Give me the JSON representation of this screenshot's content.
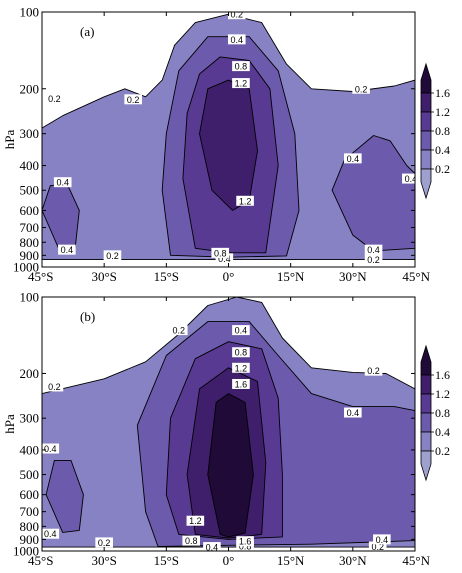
{
  "chart_data": [
    {
      "type": "contour",
      "panel_label": "(a)",
      "title": "",
      "xlabel": "",
      "ylabel": "hPa",
      "x_ticks": [
        "45°S",
        "30°S",
        "15°S",
        "0°",
        "15°N",
        "30°N",
        "45°N"
      ],
      "x_tick_values": [
        -45,
        -30,
        -15,
        0,
        15,
        30,
        45
      ],
      "xlim": [
        -45,
        45
      ],
      "y_ticks": [
        "100",
        "200",
        "300",
        "400",
        "500",
        "600",
        "700",
        "800",
        "900",
        "1000"
      ],
      "y_tick_values": [
        100,
        200,
        300,
        400,
        500,
        600,
        700,
        800,
        900,
        1000
      ],
      "ylim": [
        100,
        1000
      ],
      "y_scale": "log",
      "y_inverted": true,
      "levels": [
        0.2,
        0.4,
        0.8,
        1.2,
        1.6
      ],
      "regions": [
        {
          "level": 0.2,
          "lat_lon": [
            [
              -45,
              285
            ],
            [
              -40,
              255
            ],
            [
              -30,
              215
            ],
            [
              -25,
              200
            ],
            [
              -20,
              215
            ],
            [
              -16,
              185
            ],
            [
              -13,
              135
            ],
            [
              -8,
              110
            ],
            [
              0,
              102
            ],
            [
              8,
              110
            ],
            [
              14,
              160
            ],
            [
              20,
              200
            ],
            [
              30,
              205
            ],
            [
              40,
              195
            ],
            [
              45,
              185
            ],
            [
              45,
              935
            ],
            [
              -45,
              935
            ]
          ]
        },
        {
          "level": 0.4,
          "lat_lon": [
            [
              -14,
              900
            ],
            [
              -16,
              500
            ],
            [
              -15,
              300
            ],
            [
              -12,
              170
            ],
            [
              -5,
              125
            ],
            [
              5,
              125
            ],
            [
              12,
              170
            ],
            [
              16,
              300
            ],
            [
              17,
              600
            ],
            [
              14,
              905
            ],
            [
              0,
              915
            ]
          ]
        },
        {
          "level": 0.4,
          "lat_lon": [
            [
              -41,
              845
            ],
            [
              -45,
              600
            ],
            [
              -43,
              480
            ],
            [
              -39,
              470
            ],
            [
              -36,
              600
            ],
            [
              -37,
              840
            ]
          ]
        },
        {
          "level": 0.4,
          "lat_lon": [
            [
              35,
              305
            ],
            [
              39,
              320
            ],
            [
              43,
              400
            ],
            [
              45,
              430
            ],
            [
              45,
              845
            ],
            [
              35,
              865
            ],
            [
              30,
              750
            ],
            [
              25,
              500
            ],
            [
              28,
              380
            ]
          ]
        },
        {
          "level": 0.8,
          "lat_lon": [
            [
              -8,
              845
            ],
            [
              -11,
              450
            ],
            [
              -10,
              250
            ],
            [
              -7,
              175
            ],
            [
              -2,
              150
            ],
            [
              5,
              155
            ],
            [
              10,
              200
            ],
            [
              12,
              400
            ],
            [
              9,
              880
            ],
            [
              0,
              880
            ]
          ]
        },
        {
          "level": 1.2,
          "lat_lon": [
            [
              -4,
              500
            ],
            [
              -7,
              300
            ],
            [
              -5,
              200
            ],
            [
              0,
              185
            ],
            [
              5,
              200
            ],
            [
              7,
              350
            ],
            [
              5,
              550
            ],
            [
              1,
              600
            ]
          ]
        }
      ],
      "contour_labels": [
        {
          "text": "0.2",
          "lat": 2,
          "p": 102
        },
        {
          "text": "0.2",
          "lat": -42,
          "p": 218
        },
        {
          "text": "0.2",
          "lat": -23,
          "p": 220
        },
        {
          "text": "0.2",
          "lat": 32,
          "p": 200
        },
        {
          "text": "0.2",
          "lat": -28,
          "p": 900
        },
        {
          "text": "0.2",
          "lat": 35,
          "p": 935
        },
        {
          "text": "0.4",
          "lat": 2,
          "p": 128
        },
        {
          "text": "0.4",
          "lat": -40,
          "p": 465
        },
        {
          "text": "0.4",
          "lat": -39,
          "p": 855
        },
        {
          "text": "0.4",
          "lat": 30,
          "p": 375
        },
        {
          "text": "0.4",
          "lat": 44,
          "p": 450
        },
        {
          "text": "0.4",
          "lat": 35,
          "p": 855
        },
        {
          "text": "0.4",
          "lat": -1,
          "p": 925
        },
        {
          "text": "0.8",
          "lat": 3,
          "p": 163
        },
        {
          "text": "0.8",
          "lat": -2,
          "p": 880
        },
        {
          "text": "1.2",
          "lat": 3,
          "p": 190
        },
        {
          "text": "1.2",
          "lat": 4,
          "p": 550
        }
      ]
    },
    {
      "type": "contour",
      "panel_label": "(b)",
      "title": "",
      "xlabel": "",
      "ylabel": "hPa",
      "x_ticks": [
        "45°S",
        "30°S",
        "15°S",
        "0°",
        "15°N",
        "30°N",
        "45°N"
      ],
      "x_tick_values": [
        -45,
        -30,
        -15,
        0,
        15,
        30,
        45
      ],
      "xlim": [
        -45,
        45
      ],
      "y_ticks": [
        "100",
        "200",
        "300",
        "400",
        "500",
        "600",
        "700",
        "800",
        "900",
        "1000"
      ],
      "y_tick_values": [
        100,
        200,
        300,
        400,
        500,
        600,
        700,
        800,
        900,
        1000
      ],
      "ylim": [
        100,
        1000
      ],
      "y_scale": "log",
      "y_inverted": true,
      "levels": [
        0.2,
        0.4,
        0.8,
        1.2,
        1.6
      ],
      "regions": [
        {
          "level": 0.2,
          "lat_lon": [
            [
              -45,
              240
            ],
            [
              -30,
              210
            ],
            [
              -20,
              180
            ],
            [
              -12,
              140
            ],
            [
              -5,
              108
            ],
            [
              2,
              100
            ],
            [
              8,
              105
            ],
            [
              13,
              145
            ],
            [
              20,
              190
            ],
            [
              30,
              198
            ],
            [
              38,
              200
            ],
            [
              45,
              230
            ],
            [
              45,
              965
            ],
            [
              -45,
              965
            ]
          ]
        },
        {
          "level": 0.4,
          "lat_lon": [
            [
              -17,
              960
            ],
            [
              -20,
              700
            ],
            [
              -22,
              320
            ],
            [
              -15,
              170
            ],
            [
              -5,
              125
            ],
            [
              5,
              125
            ],
            [
              12,
              170
            ],
            [
              20,
              240
            ],
            [
              30,
              270
            ],
            [
              40,
              270
            ],
            [
              45,
              280
            ],
            [
              45,
              910
            ],
            [
              20,
              940
            ],
            [
              0,
              950
            ]
          ]
        },
        {
          "level": 0.4,
          "lat_lon": [
            [
              -40,
              845
            ],
            [
              -44,
              600
            ],
            [
              -42,
              440
            ],
            [
              -38,
              440
            ],
            [
              -35,
              600
            ],
            [
              -36,
              830
            ]
          ]
        },
        {
          "level": 0.8,
          "lat_lon": [
            [
              -12,
              860
            ],
            [
              -15,
              600
            ],
            [
              -14,
              300
            ],
            [
              -8,
              175
            ],
            [
              0,
              150
            ],
            [
              8,
              160
            ],
            [
              12,
              250
            ],
            [
              13,
              500
            ],
            [
              13,
              880
            ],
            [
              0,
              900
            ]
          ]
        },
        {
          "level": 1.2,
          "lat_lon": [
            [
              -8,
              860
            ],
            [
              -10,
              500
            ],
            [
              -7,
              230
            ],
            [
              0,
              190
            ],
            [
              7,
              215
            ],
            [
              9,
              450
            ],
            [
              8,
              860
            ],
            [
              0,
              890
            ]
          ]
        },
        {
          "level": 1.6,
          "lat_lon": [
            [
              -2,
              860
            ],
            [
              -5,
              500
            ],
            [
              -3,
              260
            ],
            [
              0,
              240
            ],
            [
              4,
              260
            ],
            [
              6,
              500
            ],
            [
              4,
              850
            ],
            [
              0,
              880
            ]
          ]
        }
      ],
      "contour_labels": [
        {
          "text": "0.2",
          "lat": -12,
          "p": 135
        },
        {
          "text": "0.2",
          "lat": -42,
          "p": 225
        },
        {
          "text": "0.2",
          "lat": 35,
          "p": 195
        },
        {
          "text": "0.2",
          "lat": -30,
          "p": 925
        },
        {
          "text": "0.2",
          "lat": 36,
          "p": 960
        },
        {
          "text": "0.4",
          "lat": 3,
          "p": 135
        },
        {
          "text": "0.4",
          "lat": 30,
          "p": 285
        },
        {
          "text": "0.4",
          "lat": -43,
          "p": 395
        },
        {
          "text": "0.4",
          "lat": -43,
          "p": 855
        },
        {
          "text": "0.4",
          "lat": 37,
          "p": 900
        },
        {
          "text": "0.4",
          "lat": -4,
          "p": 965
        },
        {
          "text": "0.8",
          "lat": 3,
          "p": 165
        },
        {
          "text": "0.8",
          "lat": -9,
          "p": 910
        },
        {
          "text": "0.8",
          "lat": 4,
          "p": 955
        },
        {
          "text": "1.2",
          "lat": 3,
          "p": 190
        },
        {
          "text": "1.2",
          "lat": -8,
          "p": 760
        },
        {
          "text": "1.6",
          "lat": 3,
          "p": 220
        },
        {
          "text": "1.6",
          "lat": 4,
          "p": 915
        }
      ]
    }
  ],
  "colorbar": {
    "tick_labels": [
      "1.6",
      "1.2",
      "0.8",
      "0.4",
      "0.2"
    ],
    "tick_values": [
      1.6,
      1.2,
      0.8,
      0.4,
      0.2
    ],
    "colors": [
      "#9ea1cf",
      "#8682c3",
      "#6c5aad",
      "#593a93",
      "#3f1e6c",
      "#1f0a38"
    ],
    "background_color": "#ffffff",
    "extend": "both"
  }
}
